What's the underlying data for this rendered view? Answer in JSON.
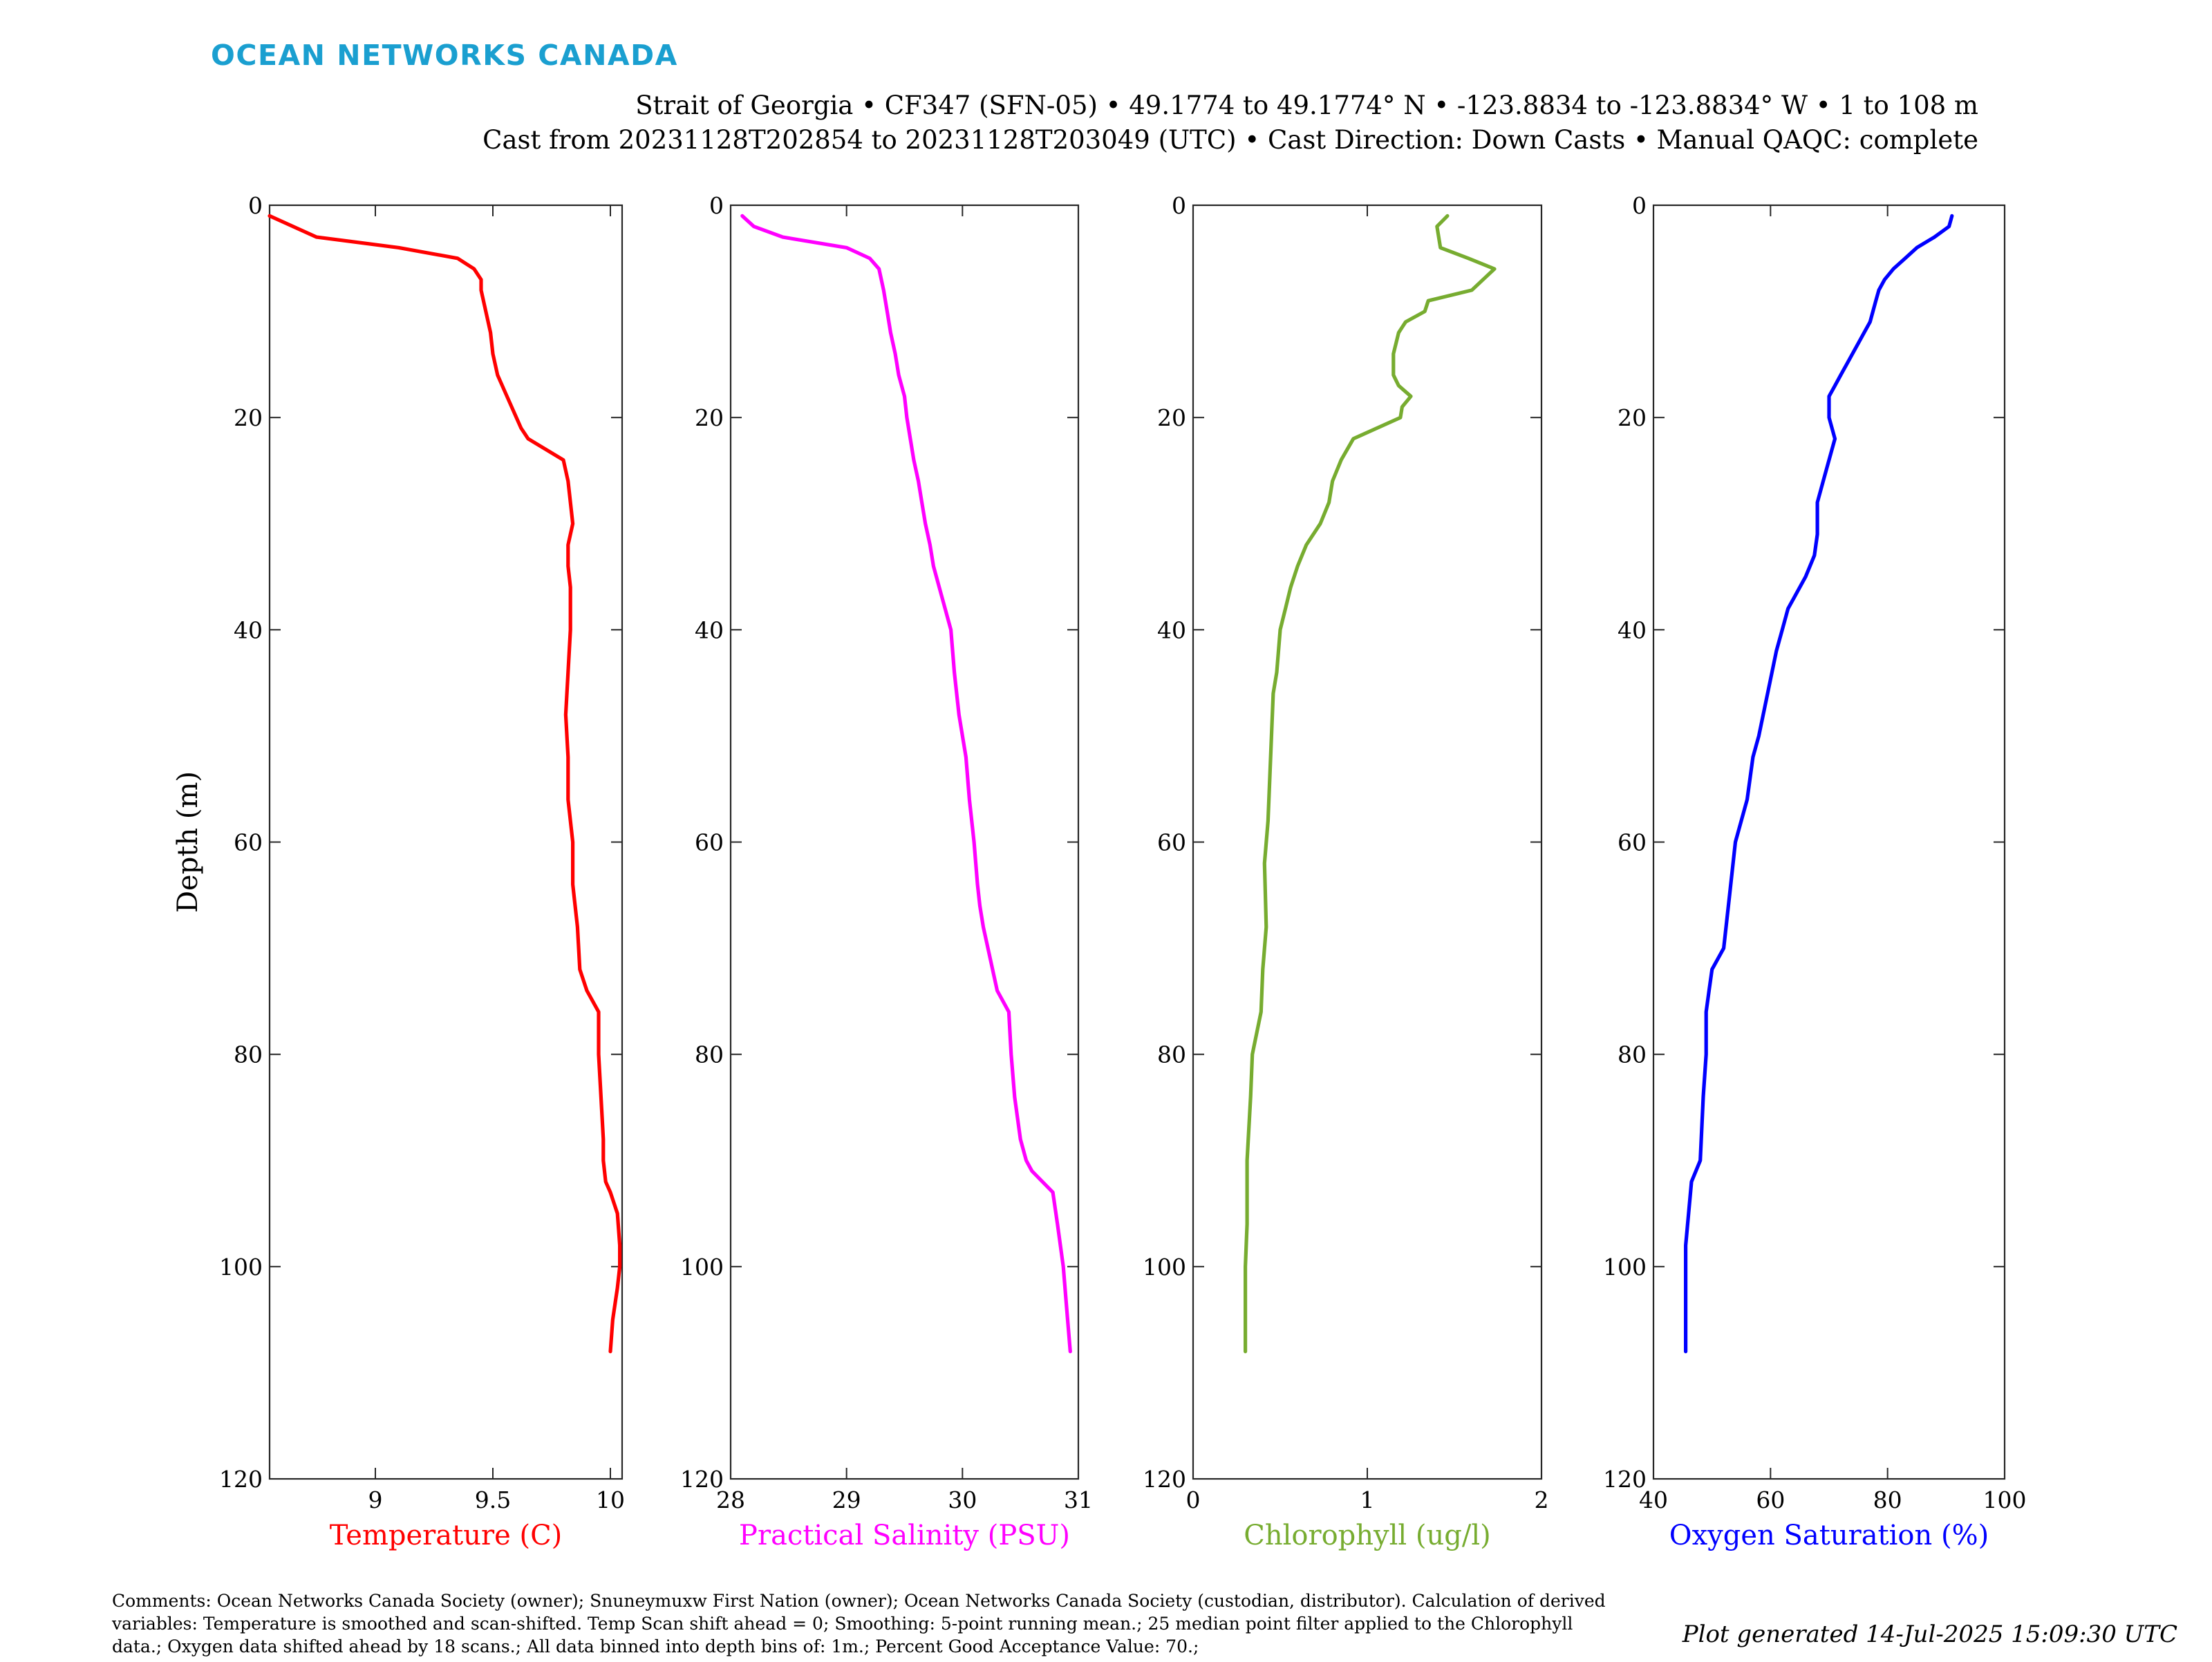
{
  "header": {
    "logo_text": "OCEAN NETWORKS CANADA",
    "title_line1": "Strait of Georgia • CF347 (SFN-05) • 49.1774 to 49.1774° N • -123.8834 to -123.8834° W • 1 to 108 m",
    "title_line2": "Cast from 20231128T202854 to 20231128T203049 (UTC) • Cast Direction: Down Casts • Manual QAQC: complete"
  },
  "footer": {
    "comments_line1": "Comments: Ocean Networks Canada Society (owner); Snuneymuxw First Nation (owner); Ocean Networks Canada Society (custodian, distributor). Calculation of derived",
    "comments_line2": "variables: Temperature is smoothed and scan-shifted. Temp Scan shift ahead = 0; Smoothing: 5-point running mean.; 25 median point filter applied to the Chlorophyll",
    "comments_line3": "data.; Oxygen data shifted ahead by 18 scans.; All data binned into depth bins of: 1m.; Percent Good Acceptance Value: 70.;",
    "generated": "Plot generated 14-Jul-2025 15:09:30 UTC"
  },
  "colors": {
    "logo": "#1a9fd0",
    "temperature": "#ff0000",
    "salinity": "#ff00ff",
    "chlorophyll": "#77ac30",
    "oxygen": "#0000ff",
    "axis": "#262626"
  },
  "chart_data": [
    {
      "type": "line",
      "ylabel": "Depth (m)",
      "xlabel": "Temperature (C)",
      "xlim": [
        8.55,
        10.05
      ],
      "ylim": [
        0,
        120
      ],
      "y_reversed": true,
      "xticks": [
        9,
        9.5,
        10
      ],
      "xtick_labels": [
        "9",
        "9.5",
        "10"
      ],
      "yticks": [
        0,
        20,
        40,
        60,
        80,
        100,
        120
      ],
      "ytick_labels": [
        "0",
        "20",
        "40",
        "60",
        "80",
        "100",
        "120"
      ],
      "series": [
        {
          "x": [
            8.55,
            8.65,
            8.75,
            9.1,
            9.35,
            9.42,
            9.45,
            9.45,
            9.47,
            9.49,
            9.5,
            9.52,
            9.56,
            9.6,
            9.62,
            9.65,
            9.8,
            9.82,
            9.83,
            9.84,
            9.82,
            9.82,
            9.83,
            9.83,
            9.83,
            9.82,
            9.81,
            9.82,
            9.82,
            9.83,
            9.84,
            9.84,
            9.85,
            9.86,
            9.87,
            9.9,
            9.95,
            9.95,
            9.96,
            9.97,
            9.97,
            9.98,
            10.0,
            10.03,
            10.04,
            10.04,
            10.03,
            10.01,
            10.0
          ],
          "y": [
            1,
            2,
            3,
            4,
            5,
            6,
            7,
            8,
            10,
            12,
            14,
            16,
            18,
            20,
            21,
            22,
            24,
            26,
            28,
            30,
            32,
            34,
            36,
            38,
            40,
            44,
            48,
            52,
            56,
            58,
            60,
            64,
            66,
            68,
            72,
            74,
            76,
            80,
            84,
            88,
            90,
            92,
            93,
            95,
            98,
            100,
            102,
            105,
            108
          ]
        }
      ]
    },
    {
      "type": "line",
      "xlabel": "Practical Salinity (PSU)",
      "xlim": [
        28,
        31
      ],
      "ylim": [
        0,
        120
      ],
      "y_reversed": true,
      "xticks": [
        28,
        29,
        30,
        31
      ],
      "xtick_labels": [
        "28",
        "29",
        "30",
        "31"
      ],
      "yticks": [
        0,
        20,
        40,
        60,
        80,
        100,
        120
      ],
      "ytick_labels": [
        "0",
        "20",
        "40",
        "60",
        "80",
        "100",
        "120"
      ],
      "series": [
        {
          "x": [
            28.1,
            28.2,
            28.45,
            29.0,
            29.2,
            29.28,
            29.32,
            29.35,
            29.38,
            29.42,
            29.45,
            29.5,
            29.52,
            29.55,
            29.58,
            29.62,
            29.65,
            29.68,
            29.72,
            29.75,
            29.8,
            29.85,
            29.9,
            29.93,
            29.97,
            30.03,
            30.06,
            30.1,
            30.13,
            30.15,
            30.18,
            30.22,
            30.26,
            30.3,
            30.4,
            30.42,
            30.45,
            30.5,
            30.55,
            30.6,
            30.78,
            30.82,
            30.87,
            30.9,
            30.93
          ],
          "y": [
            1,
            2,
            3,
            4,
            5,
            6,
            8,
            10,
            12,
            14,
            16,
            18,
            20,
            22,
            24,
            26,
            28,
            30,
            32,
            34,
            36,
            38,
            40,
            44,
            48,
            52,
            56,
            60,
            64,
            66,
            68,
            70,
            72,
            74,
            76,
            80,
            84,
            88,
            90,
            91,
            93,
            96,
            100,
            104,
            108
          ]
        }
      ]
    },
    {
      "type": "line",
      "xlabel": "Chlorophyll (ug/l)",
      "xlim": [
        0,
        2
      ],
      "ylim": [
        0,
        120
      ],
      "y_reversed": true,
      "xticks": [
        0,
        1,
        2
      ],
      "xtick_labels": [
        "0",
        "1",
        "2"
      ],
      "yticks": [
        0,
        20,
        40,
        60,
        80,
        100,
        120
      ],
      "ytick_labels": [
        "0",
        "20",
        "40",
        "60",
        "80",
        "100",
        "120"
      ],
      "series": [
        {
          "x": [
            1.46,
            1.4,
            1.42,
            1.58,
            1.73,
            1.6,
            1.35,
            1.33,
            1.22,
            1.18,
            1.15,
            1.15,
            1.18,
            1.25,
            1.2,
            1.19,
            0.92,
            0.85,
            0.8,
            0.78,
            0.73,
            0.65,
            0.6,
            0.56,
            0.53,
            0.5,
            0.48,
            0.46,
            0.45,
            0.44,
            0.43,
            0.41,
            0.42,
            0.4,
            0.39,
            0.34,
            0.33,
            0.31,
            0.31,
            0.3,
            0.3
          ],
          "y": [
            1,
            2,
            4,
            5,
            6,
            8,
            9,
            10,
            11,
            12,
            14,
            16,
            17,
            18,
            19,
            20,
            22,
            24,
            26,
            28,
            30,
            32,
            34,
            36,
            38,
            40,
            44,
            46,
            50,
            54,
            58,
            62,
            68,
            72,
            76,
            80,
            84,
            90,
            96,
            100,
            108
          ]
        }
      ]
    },
    {
      "type": "line",
      "xlabel": "Oxygen Saturation (%)",
      "xlim": [
        40,
        100
      ],
      "ylim": [
        0,
        120
      ],
      "y_reversed": true,
      "xticks": [
        40,
        60,
        80,
        100
      ],
      "xtick_labels": [
        "40",
        "60",
        "80",
        "100"
      ],
      "yticks": [
        0,
        20,
        40,
        60,
        80,
        100,
        120
      ],
      "ytick_labels": [
        "0",
        "20",
        "40",
        "60",
        "80",
        "100",
        "120"
      ],
      "series": [
        {
          "x": [
            91,
            90.5,
            88,
            85,
            83,
            81,
            79.5,
            78.5,
            78,
            77.5,
            77,
            76,
            75,
            73,
            72,
            71,
            70,
            70,
            71,
            70,
            69,
            68,
            68,
            67.5,
            66,
            64,
            63,
            62,
            61,
            59.5,
            58,
            57,
            56,
            54,
            53,
            52,
            50,
            49.5,
            49,
            49,
            48.5,
            48,
            46.5,
            46,
            45.5,
            45.5,
            45.5
          ],
          "y": [
            1,
            2,
            3,
            4,
            5,
            6,
            7,
            8,
            9,
            10,
            11,
            12,
            13,
            15,
            16,
            17,
            18,
            20,
            22,
            24,
            26,
            28,
            31,
            33,
            35,
            37,
            38,
            40,
            42,
            46,
            50,
            52,
            56,
            60,
            65,
            70,
            72,
            74,
            76,
            80,
            84,
            90,
            92,
            95,
            98,
            100,
            108
          ]
        }
      ]
    }
  ]
}
